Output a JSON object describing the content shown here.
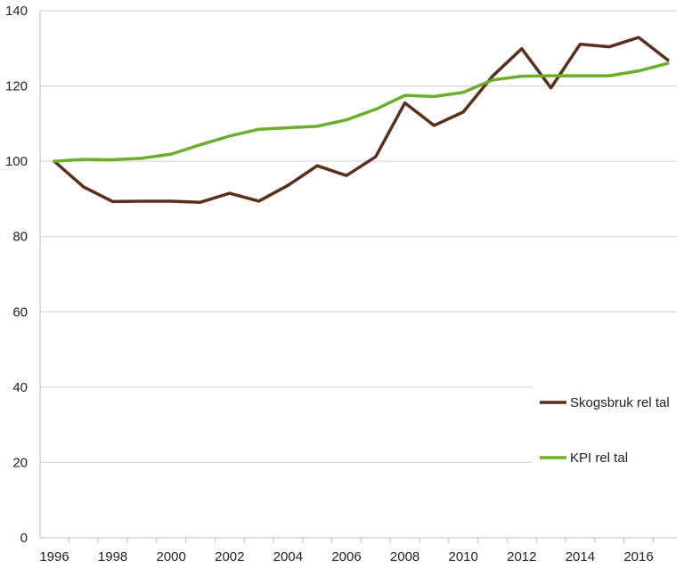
{
  "chart_data": {
    "type": "line",
    "x": [
      1996,
      1997,
      1998,
      1999,
      2000,
      2001,
      2002,
      2003,
      2004,
      2005,
      2006,
      2007,
      2008,
      2009,
      2010,
      2011,
      2012,
      2013,
      2014,
      2015,
      2016,
      2017
    ],
    "x_tick_labels": [
      "1996",
      "1998",
      "2000",
      "2002",
      "2004",
      "2006",
      "2008",
      "2010",
      "2012",
      "2014",
      "2016"
    ],
    "y_tick_labels": [
      "0",
      "20",
      "40",
      "60",
      "80",
      "100",
      "120",
      "140"
    ],
    "ylim": [
      0,
      140
    ],
    "xlim": [
      1996,
      2017
    ],
    "grid": true,
    "legend_position": "right",
    "series": [
      {
        "name": "Skogsbruk rel tal",
        "color": "#5a2f1b",
        "values": [
          100,
          93.2,
          89.3,
          89.4,
          89.4,
          89.1,
          91.5,
          89.4,
          93.6,
          98.8,
          96.2,
          101.2,
          115.5,
          109.5,
          113.1,
          122.6,
          129.9,
          119.5,
          131.1,
          130.4,
          132.9,
          126.9
        ]
      },
      {
        "name": "KPI rel tal",
        "color": "#6aae2a",
        "values": [
          100,
          100.5,
          100.4,
          100.8,
          101.9,
          104.4,
          106.7,
          108.5,
          108.9,
          109.3,
          111.0,
          113.8,
          117.5,
          117.2,
          118.3,
          121.6,
          122.6,
          122.7,
          122.7,
          122.7,
          124.0,
          126.0
        ]
      }
    ]
  }
}
